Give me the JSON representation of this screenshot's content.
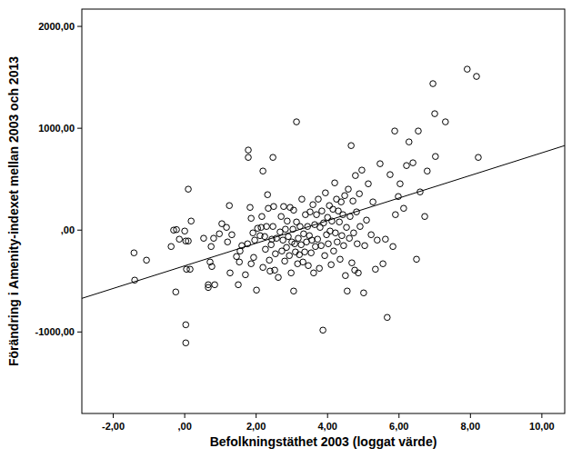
{
  "chart_data": {
    "type": "scatter",
    "x_label": "Befolkningstäthet 2003 (loggat värde)",
    "y_label": "Förändring i Amenity-indexet mellan 2003 och 2013",
    "color": "#000000",
    "marker": "open-circle",
    "xlim": [
      -2.88,
      10.64
    ],
    "ylim": [
      -1800,
      2170
    ],
    "xticks": [
      {
        "value": -2,
        "label": "-2,00"
      },
      {
        "value": 0,
        "label": ",00"
      },
      {
        "value": 2,
        "label": "2,00"
      },
      {
        "value": 4,
        "label": "4,00"
      },
      {
        "value": 6,
        "label": "6,00"
      },
      {
        "value": 8,
        "label": "8,00"
      },
      {
        "value": 10,
        "label": "10,00"
      }
    ],
    "yticks": [
      {
        "value": -1000,
        "label": "-1000,00"
      },
      {
        "value": 0,
        "label": ",00"
      },
      {
        "value": 1000,
        "label": "1000,00"
      },
      {
        "value": 2000,
        "label": "2000,00"
      }
    ],
    "fit_line": {
      "x": [
        -2.88,
        10.64
      ],
      "values": [
        -670,
        830
      ],
      "line_style": "solid"
    },
    "x": [
      -1.42,
      -1.4,
      -1.07,
      -0.38,
      -0.31,
      -0.23,
      -0.25,
      -0.15,
      0.03,
      0.1,
      0.0,
      0.1,
      0.18,
      0.05,
      0.15,
      0.03,
      0.03,
      0.53,
      0.66,
      0.66,
      0.71,
      0.74,
      0.76,
      0.81,
      0.84,
      0.97,
      1.04,
      1.17,
      1.2,
      1.25,
      1.27,
      1.32,
      1.45,
      1.5,
      1.53,
      1.55,
      1.6,
      1.7,
      1.76,
      1.78,
      1.78,
      1.83,
      1.86,
      1.86,
      1.91,
      1.93,
      1.96,
      2.01,
      2.04,
      2.11,
      2.14,
      2.16,
      2.19,
      2.19,
      2.24,
      2.26,
      2.29,
      2.32,
      2.34,
      2.37,
      2.39,
      2.42,
      2.44,
      2.47,
      2.47,
      2.49,
      2.52,
      2.54,
      2.57,
      2.62,
      2.67,
      2.7,
      2.72,
      2.75,
      2.77,
      2.8,
      2.82,
      2.85,
      2.87,
      2.9,
      2.93,
      2.95,
      2.98,
      3.0,
      3.03,
      3.05,
      3.05,
      3.08,
      3.1,
      3.13,
      3.13,
      3.16,
      3.18,
      3.21,
      3.23,
      3.26,
      3.28,
      3.31,
      3.33,
      3.36,
      3.38,
      3.41,
      3.44,
      3.46,
      3.49,
      3.51,
      3.54,
      3.56,
      3.59,
      3.61,
      3.64,
      3.66,
      3.69,
      3.72,
      3.74,
      3.77,
      3.79,
      3.82,
      3.84,
      3.87,
      3.89,
      3.92,
      3.94,
      3.97,
      4.0,
      4.02,
      4.05,
      4.07,
      4.1,
      4.12,
      4.15,
      4.17,
      4.2,
      4.22,
      4.25,
      4.27,
      4.3,
      4.33,
      4.35,
      4.38,
      4.4,
      4.43,
      4.45,
      4.48,
      4.5,
      4.53,
      4.55,
      4.58,
      4.61,
      4.63,
      4.66,
      4.68,
      4.71,
      4.73,
      4.76,
      4.78,
      4.81,
      4.83,
      4.86,
      4.89,
      4.91,
      4.96,
      5.01,
      5.04,
      5.09,
      5.14,
      5.22,
      5.27,
      5.34,
      5.39,
      5.47,
      5.55,
      5.62,
      5.67,
      5.75,
      5.83,
      5.88,
      5.9,
      5.98,
      6.03,
      6.13,
      6.21,
      6.28,
      6.39,
      6.49,
      6.54,
      6.59,
      6.72,
      6.79,
      6.95,
      7.0,
      7.02,
      7.3,
      7.91,
      8.17,
      8.22
    ],
    "values": [
      -223,
      -491,
      -295,
      -161,
      0,
      5,
      -607,
      -89,
      -107,
      -107,
      -9,
      402,
      89,
      -384,
      -384,
      -929,
      -1107,
      -80,
      -536,
      -563,
      -313,
      -161,
      -357,
      -80,
      -536,
      -36,
      63,
      27,
      -116,
      241,
      -420,
      -45,
      -259,
      -536,
      -313,
      -205,
      -152,
      -438,
      -134,
      786,
      714,
      223,
      116,
      -330,
      -27,
      -268,
      -98,
      -589,
      18,
      -54,
      27,
      134,
      580,
      -366,
      -63,
      -188,
      36,
      348,
      214,
      -295,
      -402,
      -143,
      -89,
      714,
      36,
      232,
      -393,
      -232,
      -80,
      -464,
      -18,
      134,
      -205,
      -98,
      232,
      -304,
      9,
      -170,
      89,
      -63,
      -250,
      223,
      -420,
      -116,
      9,
      196,
      -598,
      -134,
      -214,
      1063,
      80,
      -330,
      -80,
      -241,
      36,
      -143,
      304,
      -313,
      -36,
      -214,
      152,
      -116,
      36,
      -348,
      -54,
      179,
      -223,
      -98,
      250,
      -420,
      54,
      -161,
      152,
      -89,
      304,
      -375,
      27,
      -152,
      188,
      -982,
      71,
      -250,
      366,
      -45,
      125,
      -134,
      241,
      -9,
      -339,
      89,
      205,
      -205,
      464,
      -27,
      304,
      -116,
      188,
      80,
      -286,
      277,
      -54,
      152,
      -152,
      339,
      -446,
      27,
      -598,
      402,
      -80,
      134,
      830,
      -321,
      286,
      -27,
      -393,
      536,
      179,
      -134,
      -420,
      357,
      36,
      589,
      -616,
      -152,
      98,
      455,
      -45,
      277,
      -384,
      -98,
      652,
      -330,
      -89,
      -857,
      545,
      -161,
      973,
      152,
      330,
      455,
      214,
      634,
      866,
      661,
      -286,
      973,
      375,
      134,
      580,
      1438,
      1143,
      723,
      1063,
      1580,
      1509,
      714
    ]
  }
}
